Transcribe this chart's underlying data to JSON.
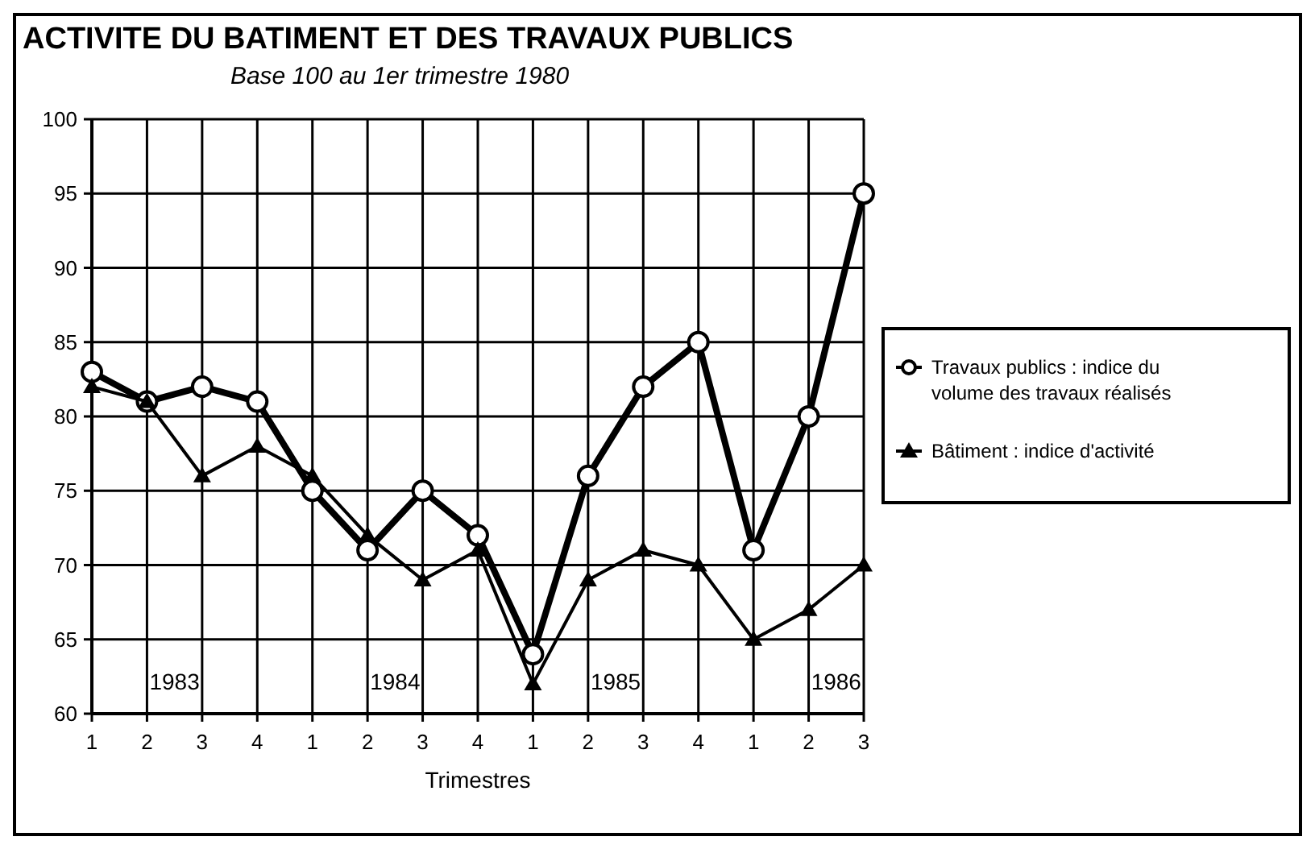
{
  "chart_data": {
    "type": "line",
    "title": "ACTIVITE DU BATIMENT ET DES TRAVAUX PUBLICS",
    "subtitle": "Base 100 au 1er trimestre 1980",
    "xlabel": "Trimestres",
    "categories": [
      "1",
      "2",
      "3",
      "4",
      "1",
      "2",
      "3",
      "4",
      "1",
      "2",
      "3",
      "4",
      "1",
      "2",
      "3"
    ],
    "ylim": [
      60,
      100
    ],
    "yticks": [
      60,
      65,
      70,
      75,
      80,
      85,
      90,
      95,
      100
    ],
    "grid": true,
    "legend": "right",
    "line_style": "solid",
    "series": [
      {
        "name": "Travaux publics : indice du volume des travaux réalisés",
        "color": "#000000",
        "marker": "circle",
        "values": [
          83,
          81,
          82,
          81,
          75,
          71,
          75,
          72,
          64,
          76,
          82,
          85,
          71,
          80,
          95
        ]
      },
      {
        "name": "Bâtiment : indice d'activité",
        "color": "#000000",
        "marker": "triangle",
        "values": [
          82,
          81,
          76,
          78,
          76,
          72,
          69,
          71,
          62,
          69,
          71,
          70,
          65,
          67,
          70
        ]
      }
    ],
    "annotations": [
      "1983",
      "1984",
      "1985",
      "1986"
    ]
  }
}
